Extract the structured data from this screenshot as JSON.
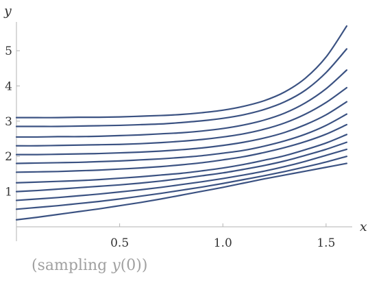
{
  "caption": {
    "prefix": "(sampling ",
    "func": "y",
    "suffix": "(0))"
  },
  "chart_data": {
    "type": "line",
    "title": "",
    "xlabel": "x",
    "ylabel": "y",
    "xlim": [
      0,
      1.6
    ],
    "ylim": [
      0,
      5.7
    ],
    "x_ticks": [
      {
        "value": 0.5,
        "label": "0.5"
      },
      {
        "value": 1.0,
        "label": "1.0"
      },
      {
        "value": 1.5,
        "label": "1.5"
      }
    ],
    "y_ticks": [
      {
        "value": 1,
        "label": "1"
      },
      {
        "value": 2,
        "label": "2"
      },
      {
        "value": 3,
        "label": "3"
      },
      {
        "value": 4,
        "label": "4"
      },
      {
        "value": 5,
        "label": "5"
      }
    ],
    "grid": false,
    "line_color": "#3b5282",
    "x": [
      0,
      0.1,
      0.2,
      0.3,
      0.4,
      0.5,
      0.6,
      0.7,
      0.8,
      0.9,
      1.0,
      1.1,
      1.2,
      1.3,
      1.4,
      1.5,
      1.6
    ],
    "series": [
      {
        "values": [
          0.2,
          0.27,
          0.35,
          0.43,
          0.51,
          0.6,
          0.69,
          0.79,
          0.9,
          1.01,
          1.12,
          1.24,
          1.36,
          1.47,
          1.58,
          1.69,
          1.8
        ]
      },
      {
        "values": [
          0.5,
          0.55,
          0.6,
          0.66,
          0.72,
          0.79,
          0.87,
          0.95,
          1.04,
          1.13,
          1.23,
          1.34,
          1.45,
          1.57,
          1.7,
          1.84,
          2.0
        ]
      },
      {
        "values": [
          0.75,
          0.79,
          0.83,
          0.88,
          0.93,
          0.99,
          1.05,
          1.12,
          1.2,
          1.28,
          1.37,
          1.47,
          1.58,
          1.71,
          1.86,
          2.03,
          2.2
        ]
      },
      {
        "values": [
          1.0,
          1.03,
          1.07,
          1.11,
          1.15,
          1.19,
          1.24,
          1.3,
          1.37,
          1.45,
          1.53,
          1.63,
          1.74,
          1.87,
          2.03,
          2.2,
          2.4
        ]
      },
      {
        "values": [
          1.25,
          1.27,
          1.29,
          1.31,
          1.34,
          1.38,
          1.42,
          1.47,
          1.52,
          1.59,
          1.67,
          1.77,
          1.89,
          2.02,
          2.19,
          2.38,
          2.62
        ]
      },
      {
        "values": [
          1.55,
          1.56,
          1.57,
          1.59,
          1.61,
          1.64,
          1.67,
          1.71,
          1.76,
          1.82,
          1.9,
          1.99,
          2.11,
          2.25,
          2.42,
          2.63,
          2.9
        ]
      },
      {
        "values": [
          1.8,
          1.81,
          1.82,
          1.83,
          1.85,
          1.87,
          1.9,
          1.93,
          1.97,
          2.02,
          2.09,
          2.17,
          2.29,
          2.44,
          2.63,
          2.88,
          3.2
        ]
      },
      {
        "values": [
          2.05,
          2.05,
          2.06,
          2.07,
          2.08,
          2.1,
          2.12,
          2.15,
          2.19,
          2.24,
          2.31,
          2.4,
          2.52,
          2.68,
          2.9,
          3.18,
          3.55
        ]
      },
      {
        "values": [
          2.3,
          2.3,
          2.31,
          2.32,
          2.33,
          2.34,
          2.36,
          2.39,
          2.43,
          2.48,
          2.55,
          2.64,
          2.77,
          2.95,
          3.2,
          3.53,
          3.95
        ]
      },
      {
        "values": [
          2.55,
          2.55,
          2.56,
          2.56,
          2.57,
          2.59,
          2.61,
          2.64,
          2.67,
          2.72,
          2.79,
          2.89,
          3.03,
          3.23,
          3.52,
          3.92,
          4.45
        ]
      },
      {
        "values": [
          2.85,
          2.85,
          2.85,
          2.86,
          2.87,
          2.88,
          2.9,
          2.92,
          2.96,
          3.01,
          3.08,
          3.18,
          3.33,
          3.55,
          3.88,
          4.38,
          5.05
        ]
      },
      {
        "values": [
          3.1,
          3.1,
          3.1,
          3.11,
          3.11,
          3.12,
          3.14,
          3.16,
          3.19,
          3.24,
          3.31,
          3.42,
          3.58,
          3.83,
          4.22,
          4.82,
          5.7
        ]
      }
    ]
  }
}
